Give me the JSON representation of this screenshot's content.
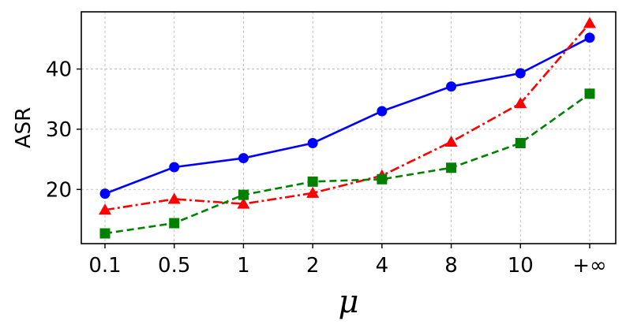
{
  "chart_data": {
    "type": "line",
    "xlabel": "μ",
    "ylabel": "ASR",
    "categories": [
      "0.1",
      "0.5",
      "1",
      "2",
      "4",
      "8",
      "10",
      "+∞"
    ],
    "ylim": [
      11,
      49.5
    ],
    "yticks": [
      20,
      30,
      40
    ],
    "grid": true,
    "series": [
      {
        "color": "#0000ff",
        "linestyle": "solid",
        "marker": "circle",
        "values": [
          19.3,
          23.7,
          25.2,
          27.7,
          33.0,
          37.1,
          39.3,
          45.2
        ]
      },
      {
        "color": "#ff0000",
        "linestyle": "dash-dot",
        "marker": "triangle",
        "values": [
          16.6,
          18.4,
          17.6,
          19.4,
          22.3,
          27.9,
          34.3,
          47.6
        ]
      },
      {
        "color": "#008000",
        "linestyle": "dashed",
        "marker": "square",
        "values": [
          12.7,
          14.4,
          19.1,
          21.3,
          21.7,
          23.6,
          27.7,
          35.9
        ]
      }
    ]
  }
}
